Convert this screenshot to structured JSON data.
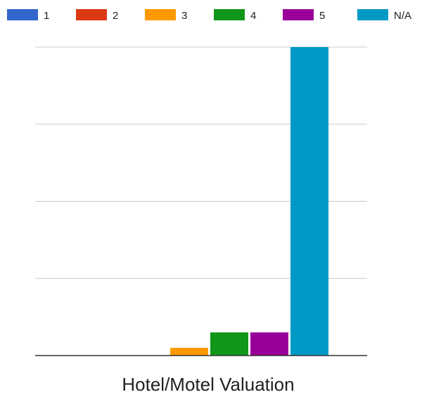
{
  "chart_data": {
    "type": "bar",
    "categories": [
      "Hotel/Motel Valuation"
    ],
    "series": [
      {
        "name": "1",
        "color": "#3366cc",
        "values": [
          0
        ]
      },
      {
        "name": "2",
        "color": "#dc3912",
        "values": [
          0
        ]
      },
      {
        "name": "3",
        "color": "#ff9900",
        "values": [
          1
        ]
      },
      {
        "name": "4",
        "color": "#109618",
        "values": [
          3
        ]
      },
      {
        "name": "5",
        "color": "#990099",
        "values": [
          3
        ]
      },
      {
        "name": "N/A",
        "color": "#0099c6",
        "values": [
          40
        ]
      }
    ],
    "title": "",
    "xlabel": "",
    "ylabel": "",
    "ylim": [
      0,
      40
    ],
    "grid": true,
    "legend_position": "top",
    "gridline_color": "#cccccc",
    "axis_color": "#333333"
  }
}
